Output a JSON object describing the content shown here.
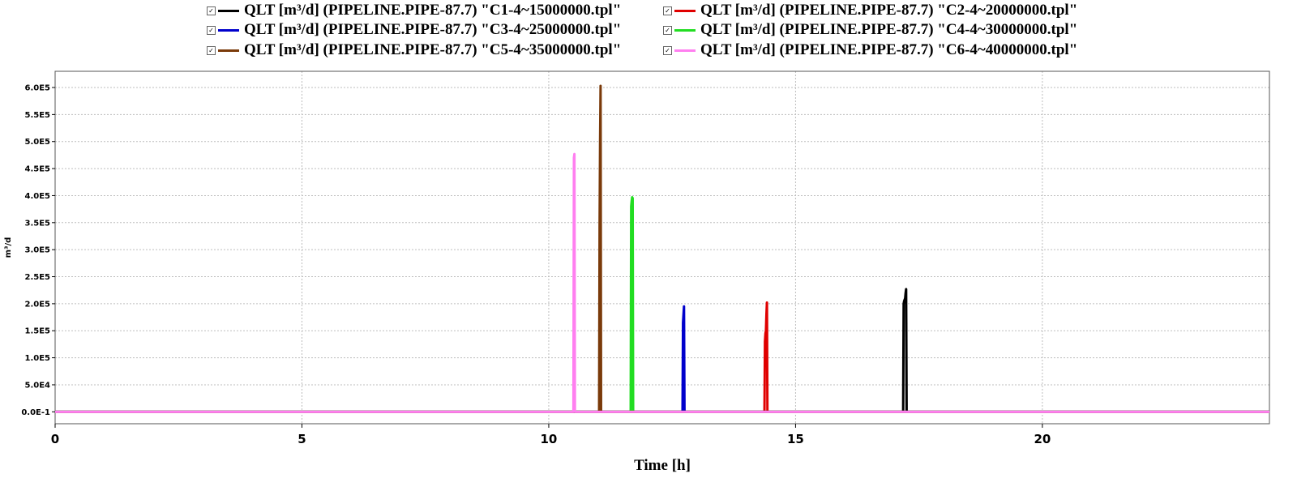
{
  "chart_data": {
    "type": "line",
    "xlabel": "Time [h]",
    "ylabel": "m³/d",
    "xlim": [
      0,
      24.6
    ],
    "ylim": [
      -22000,
      630000
    ],
    "xticks": [
      0,
      5,
      10,
      15,
      20
    ],
    "xtick_labels": [
      "0",
      "5",
      "10",
      "15",
      "20"
    ],
    "yticks": [
      0,
      50000,
      100000,
      150000,
      200000,
      250000,
      300000,
      350000,
      400000,
      450000,
      500000,
      550000,
      600000
    ],
    "ytick_labels": [
      "0.0E-1",
      "5.0E4",
      "1.0E5",
      "1.5E5",
      "2.0E5",
      "2.5E5",
      "3.0E5",
      "3.5E5",
      "4.0E5",
      "4.5E5",
      "5.0E5",
      "5.5E5",
      "6.0E5"
    ],
    "grid": true,
    "legend_position": "top",
    "series": [
      {
        "name": "QLT [m³/d] (PIPELINE.PIPE-87.7) \"C1-4~15000000.tpl\"",
        "color": "#000000",
        "x": [
          0,
          17.18,
          17.19,
          17.2,
          17.22,
          17.23,
          17.24,
          17.25,
          24.6
        ],
        "y": [
          0,
          0,
          200000,
          205000,
          210000,
          220000,
          227000,
          0,
          0
        ]
      },
      {
        "name": "QLT [m³/d] (PIPELINE.PIPE-87.7) \"C2-4~20000000.tpl\"",
        "color": "#e00000",
        "x": [
          0,
          14.37,
          14.38,
          14.39,
          14.4,
          14.41,
          14.42,
          14.43,
          24.6
        ],
        "y": [
          0,
          0,
          130000,
          145000,
          150000,
          180000,
          202000,
          0,
          0
        ]
      },
      {
        "name": "QLT [m³/d] (PIPELINE.PIPE-87.7) \"C3-4~25000000.tpl\"",
        "color": "#0000cc",
        "x": [
          0,
          12.71,
          12.72,
          12.73,
          12.74,
          12.75,
          24.6
        ],
        "y": [
          0,
          0,
          165000,
          180000,
          195000,
          0,
          0
        ]
      },
      {
        "name": "QLT [m³/d] (PIPELINE.PIPE-87.7) \"C4-4~30000000.tpl\"",
        "color": "#22dd22",
        "x": [
          0,
          11.66,
          11.67,
          11.68,
          11.69,
          11.7,
          11.71,
          24.6
        ],
        "y": [
          0,
          0,
          380000,
          390000,
          397000,
          395000,
          0,
          0
        ]
      },
      {
        "name": "QLT [m³/d] (PIPELINE.PIPE-87.7) \"C5-4~35000000.tpl\"",
        "color": "#7a3a0a",
        "x": [
          0,
          11.02,
          11.03,
          11.04,
          11.05,
          11.06,
          24.6
        ],
        "y": [
          0,
          0,
          340000,
          500000,
          603000,
          0,
          0
        ]
      },
      {
        "name": "QLT [m³/d] (PIPELINE.PIPE-87.7) \"C6-4~40000000.tpl\"",
        "color": "#ff7ff0",
        "x": [
          0,
          10.5,
          10.51,
          10.52,
          10.53,
          24.6
        ],
        "y": [
          0,
          0,
          470000,
          477000,
          0,
          0
        ]
      }
    ]
  }
}
